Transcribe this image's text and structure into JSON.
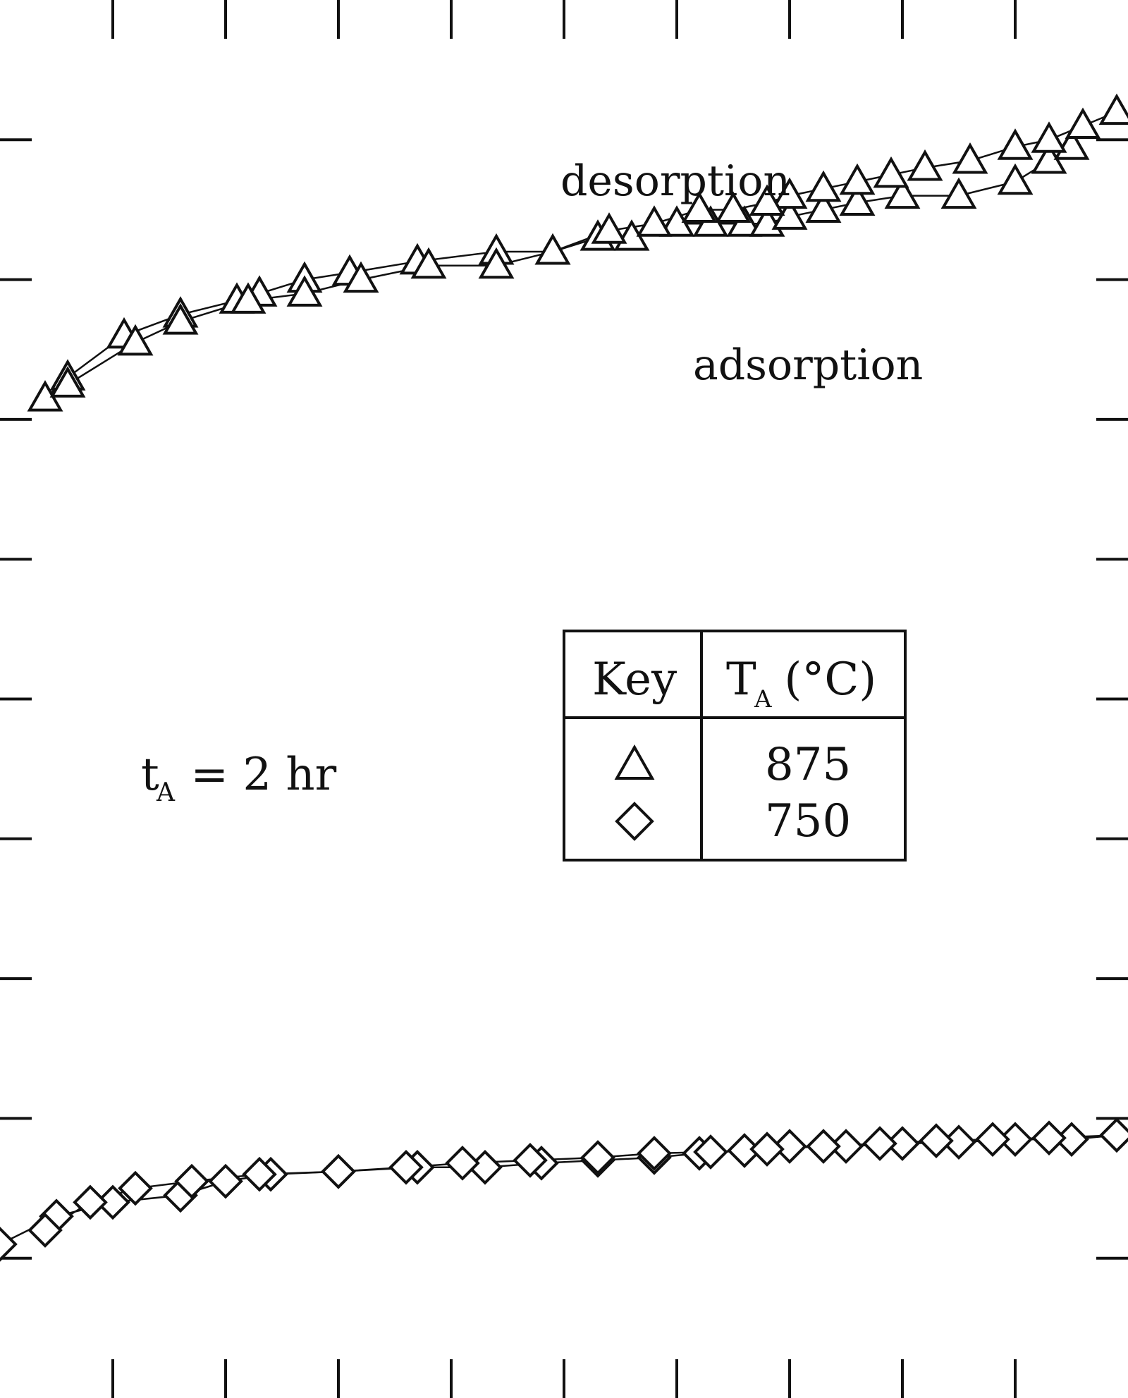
{
  "chart_data": {
    "type": "scatter",
    "title": "",
    "xlabel": "",
    "ylabel": "",
    "xlim": [
      0,
      1.0
    ],
    "ylim": [
      0,
      1.0
    ],
    "x_ticks": [
      0.1,
      0.2,
      0.3,
      0.4,
      0.5,
      0.6,
      0.7,
      0.8,
      0.9
    ],
    "y_ticks": [
      0.1,
      0.2,
      0.3,
      0.4,
      0.5,
      0.6,
      0.7,
      0.8,
      0.9
    ],
    "annotations": {
      "desorption": "desorption",
      "adsorption": "adsorption",
      "t_main": "t",
      "t_sub": "A",
      "t_rest": " = 2 hr"
    },
    "legend": {
      "title_key": "Key",
      "title_T": "T",
      "title_T_sub": "A",
      "title_T_rest": " (°C)",
      "entries": [
        {
          "marker": "triangle",
          "label": "875"
        },
        {
          "marker": "diamond",
          "label": "750"
        }
      ]
    },
    "series": [
      {
        "name": "875 adsorption",
        "marker": "triangle",
        "x": [
          0.04,
          0.06,
          0.11,
          0.16,
          0.21,
          0.23,
          0.27,
          0.31,
          0.37,
          0.44,
          0.49,
          0.53,
          0.56,
          0.6,
          0.63,
          0.66,
          0.68,
          0.7,
          0.73,
          0.76,
          0.8,
          0.85,
          0.9,
          0.93,
          0.95
        ],
        "y": [
          0.715,
          0.73,
          0.76,
          0.775,
          0.785,
          0.79,
          0.8,
          0.805,
          0.813,
          0.82,
          0.82,
          0.83,
          0.83,
          0.84,
          0.84,
          0.84,
          0.84,
          0.845,
          0.85,
          0.855,
          0.86,
          0.86,
          0.87,
          0.885,
          0.895
        ]
      },
      {
        "name": "875 desorption",
        "marker": "triangle",
        "x": [
          0.99,
          0.96,
          0.93,
          0.9,
          0.86,
          0.82,
          0.79,
          0.76,
          0.73,
          0.7,
          0.68,
          0.65,
          0.62,
          0.58,
          0.54,
          0.49,
          0.44,
          0.38,
          0.32,
          0.27,
          0.22,
          0.16,
          0.12,
          0.06
        ],
        "y": [
          0.92,
          0.91,
          0.9,
          0.895,
          0.885,
          0.88,
          0.875,
          0.87,
          0.865,
          0.86,
          0.855,
          0.85,
          0.85,
          0.84,
          0.835,
          0.82,
          0.81,
          0.81,
          0.8,
          0.79,
          0.785,
          0.77,
          0.755,
          0.725
        ]
      },
      {
        "name": "750 adsorption",
        "marker": "diamond",
        "x": [
          0.0,
          0.05,
          0.1,
          0.16,
          0.2,
          0.24,
          0.3,
          0.37,
          0.43,
          0.48,
          0.53,
          0.58,
          0.62,
          0.66,
          0.7,
          0.75,
          0.8,
          0.85,
          0.9,
          0.95,
          0.99
        ],
        "y": [
          0.11,
          0.13,
          0.14,
          0.145,
          0.155,
          0.16,
          0.162,
          0.165,
          0.165,
          0.168,
          0.17,
          0.172,
          0.175,
          0.177,
          0.18,
          0.18,
          0.182,
          0.183,
          0.185,
          0.185,
          0.188
        ]
      },
      {
        "name": "750 desorption",
        "marker": "diamond",
        "x": [
          0.99,
          0.93,
          0.88,
          0.83,
          0.78,
          0.73,
          0.68,
          0.63,
          0.58,
          0.53,
          0.47,
          0.41,
          0.36,
          0.3,
          0.23,
          0.17,
          0.12,
          0.08,
          0.04
        ],
        "y": [
          0.188,
          0.186,
          0.185,
          0.184,
          0.182,
          0.18,
          0.178,
          0.176,
          0.175,
          0.172,
          0.17,
          0.168,
          0.165,
          0.162,
          0.16,
          0.155,
          0.15,
          0.14,
          0.12
        ]
      }
    ]
  }
}
